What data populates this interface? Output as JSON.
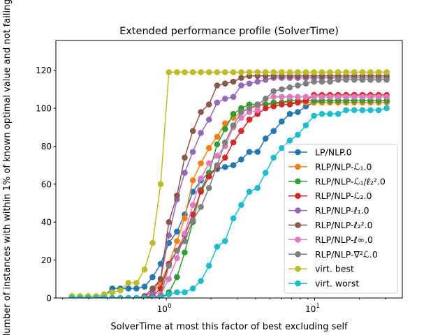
{
  "chart_data": {
    "type": "line",
    "title": "Extended performance profile (SolverTime)",
    "xlabel": "SolverTime at most this factor of best excluding self",
    "ylabel": "Number of instances with within 1% of known optimal value and not failing",
    "xscale": "log",
    "xlim": [
      0.18,
      39
    ],
    "ylim": [
      0,
      135.7
    ],
    "grid": false,
    "legend_position": "lower-right",
    "yticks": [
      "0",
      "20",
      "40",
      "60",
      "80",
      "100",
      "120"
    ],
    "xticks": [
      {
        "base": "10",
        "exp": "0",
        "value": 1
      },
      {
        "base": "10",
        "exp": "1",
        "value": 10
      }
    ],
    "x": [
      0.231,
      0.262,
      0.297,
      0.336,
      0.381,
      0.432,
      0.49,
      0.555,
      0.629,
      0.713,
      0.808,
      0.916,
      1.04,
      1.18,
      1.33,
      1.51,
      1.71,
      1.94,
      2.2,
      2.49,
      2.83,
      3.2,
      3.63,
      4.12,
      4.67,
      5.29,
      6.0,
      6.8,
      7.7,
      8.73,
      9.9,
      11.2,
      12.7,
      14.4,
      16.3,
      18.5,
      21.0,
      23.8,
      27.0,
      30.6
    ],
    "series": [
      {
        "name": "LP/NLP.0",
        "color": "#1f77b4",
        "values": [
          0,
          0,
          0,
          0,
          1,
          5,
          5,
          5,
          5,
          6,
          11,
          18,
          29,
          35,
          44,
          56,
          62,
          66,
          68,
          69,
          70,
          73,
          77,
          77,
          84,
          88,
          93,
          97,
          98,
          101,
          103,
          104,
          104,
          104,
          104,
          104,
          104,
          104,
          104,
          104
        ]
      },
      {
        "name": "RLP/NLP-ℒ₁.0",
        "color": "#ff7f0e",
        "values": [
          0,
          0,
          0,
          0,
          0,
          0,
          0,
          0,
          0,
          0,
          2,
          8,
          18,
          30,
          42,
          62,
          71,
          79,
          85,
          92,
          95,
          98,
          100,
          101,
          102,
          102,
          103,
          103,
          103,
          103,
          103,
          103,
          103,
          103,
          103,
          103,
          103,
          103,
          103,
          103
        ]
      },
      {
        "name": "RLP/NLP-ℒ₁/ℓ₂².0",
        "color": "#2ca02c",
        "values": [
          0,
          0,
          0,
          0,
          0,
          0,
          0,
          0,
          0,
          0,
          0,
          0,
          3,
          11,
          24,
          40,
          57,
          66,
          81,
          89,
          97,
          100,
          102,
          102,
          102,
          103,
          103,
          104,
          104,
          104,
          104,
          104,
          104,
          104,
          104,
          104,
          104,
          104,
          104,
          104
        ]
      },
      {
        "name": "RLP/NLP-ℒ₂.0",
        "color": "#d62728",
        "values": [
          0,
          0,
          0,
          0,
          0,
          0,
          0,
          0,
          0,
          0,
          1,
          5,
          18,
          25,
          33,
          44,
          56,
          64,
          69,
          74,
          82,
          88,
          94,
          97,
          100,
          101,
          102,
          102,
          103,
          104,
          107,
          107,
          107,
          107,
          107,
          107,
          107,
          107,
          107,
          107
        ]
      },
      {
        "name": "RLP/NLP-ℓ₁.0",
        "color": "#9467bd",
        "values": [
          0,
          0,
          0,
          0,
          0,
          0,
          0,
          0,
          0,
          1,
          3,
          10,
          33,
          52,
          66,
          77,
          87,
          94,
          103,
          105,
          106,
          112,
          113,
          114,
          115,
          116,
          116,
          116,
          116,
          116,
          116,
          116,
          116,
          116,
          116,
          116,
          116,
          116,
          116,
          116
        ]
      },
      {
        "name": "RLP/NLP-ℓ₂².0",
        "color": "#8c564b",
        "values": [
          0,
          0,
          0,
          0,
          0,
          0,
          0,
          0,
          0,
          1,
          5,
          10,
          40,
          54,
          74,
          88,
          98,
          102,
          112,
          113,
          114,
          116,
          117,
          117,
          117,
          117,
          117,
          117,
          117,
          117,
          117,
          117,
          117,
          117,
          117,
          117,
          117,
          117,
          117,
          117
        ]
      },
      {
        "name": "RLP/NLP-ℓ∞.0",
        "color": "#e377c2",
        "values": [
          0,
          0,
          0,
          0,
          0,
          0,
          0,
          0,
          0,
          0,
          0,
          2,
          10,
          21,
          34,
          49,
          63,
          71,
          75,
          80,
          90,
          95,
          98,
          99,
          105,
          106,
          106,
          106,
          106,
          106,
          106,
          106,
          106,
          106,
          106,
          106,
          106,
          106,
          106,
          106
        ]
      },
      {
        "name": "RLP/NLP-∇²ℒ.0",
        "color": "#7f7f7f",
        "values": [
          0,
          0,
          0,
          0,
          0,
          0,
          0,
          0,
          0,
          0,
          0,
          1,
          17,
          25,
          30,
          41,
          48,
          58,
          70,
          82,
          91,
          98,
          100,
          102,
          105,
          109,
          110,
          111,
          112,
          113,
          114,
          114,
          114,
          115,
          115,
          115,
          115,
          115,
          115,
          115
        ]
      },
      {
        "name": "virt. best",
        "color": "#bcbd22",
        "values": [
          1,
          1,
          1,
          1,
          2,
          3,
          4,
          8,
          8,
          15,
          29,
          60,
          119,
          119,
          119,
          119,
          119,
          119,
          119,
          119,
          119,
          119,
          119,
          119,
          119,
          119,
          119,
          119,
          119,
          119,
          119,
          119,
          119,
          119,
          119,
          119,
          119,
          119,
          119,
          119
        ]
      },
      {
        "name": "virt. worst",
        "color": "#17becf",
        "values": [
          0,
          0,
          0,
          0,
          0,
          0,
          0,
          0,
          0,
          0,
          0,
          0,
          2,
          3,
          3,
          5,
          9,
          17,
          27,
          30,
          42,
          49,
          56,
          58,
          66,
          74,
          79,
          83,
          86,
          91,
          96,
          97,
          97,
          97,
          99,
          99,
          99,
          99,
          99,
          100
        ]
      }
    ]
  }
}
